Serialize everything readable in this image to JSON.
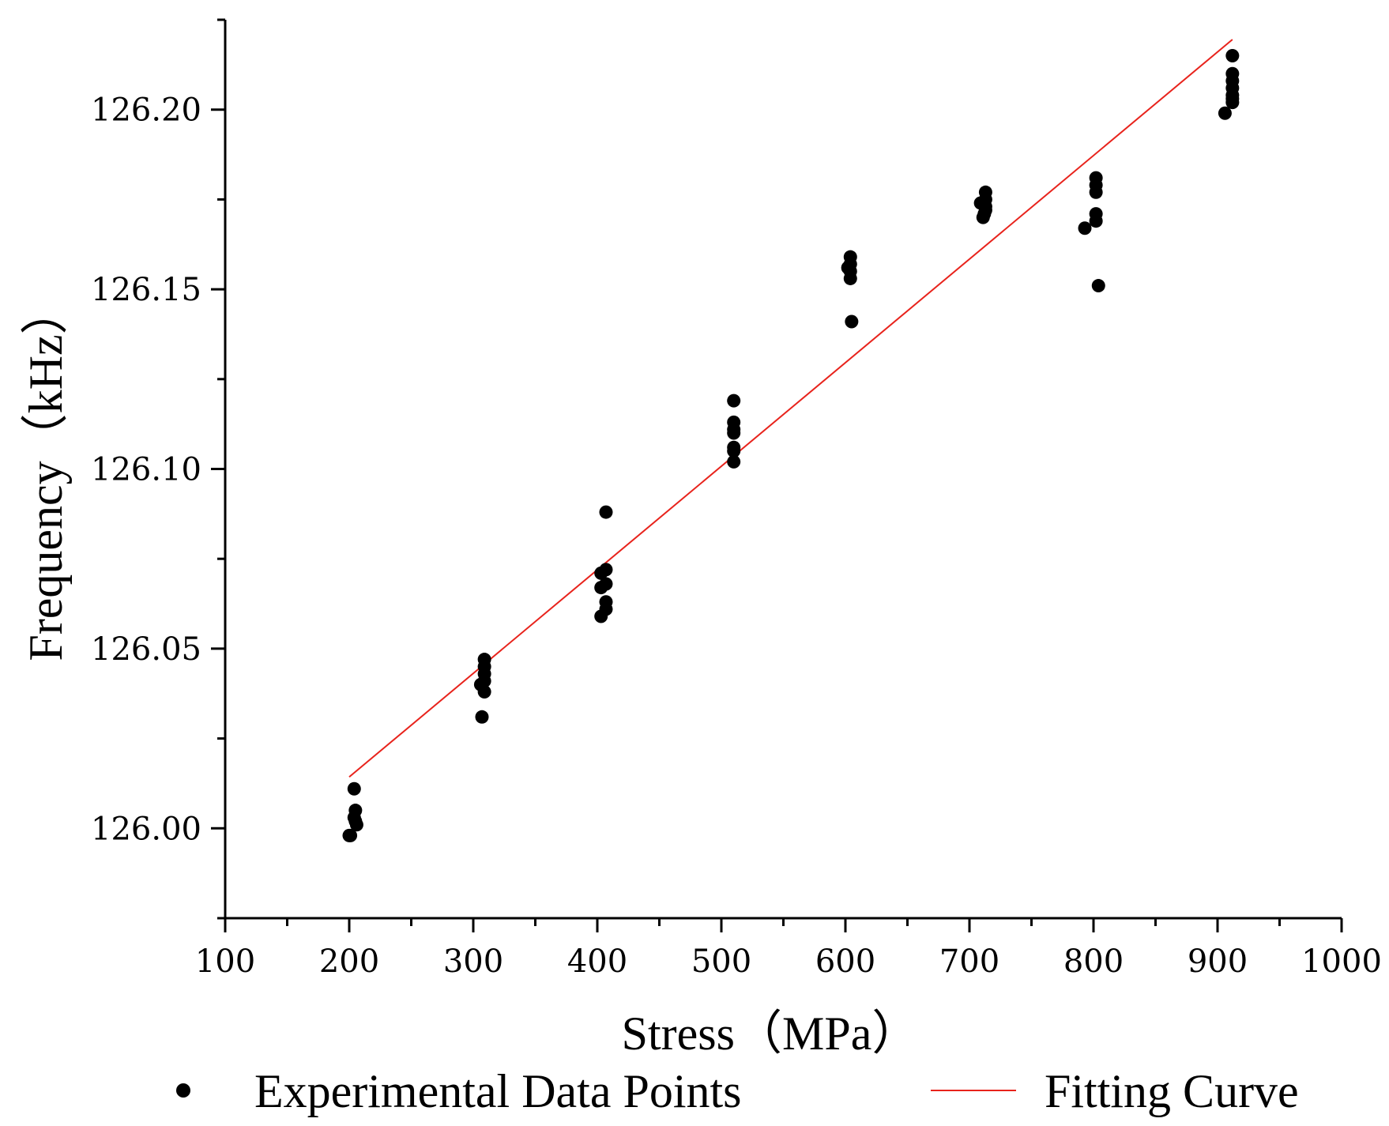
{
  "chart_data": {
    "type": "scatter",
    "xlabel": "Stress（MPa）",
    "ylabel": "Frequency（kHz）",
    "xlim": [
      100,
      1000
    ],
    "ylim": [
      125.975,
      126.225
    ],
    "x_ticks": [
      "100",
      "200",
      "300",
      "400",
      "500",
      "600",
      "700",
      "800",
      "900",
      "1000"
    ],
    "y_ticks": [
      "126.00",
      "126.05",
      "126.10",
      "126.15",
      "126.20"
    ],
    "grid": false,
    "legend_position": "bottom",
    "series": [
      {
        "name": "Experimental Data Points",
        "color": "#000000",
        "points": [
          [
            200,
            125.998
          ],
          [
            201,
            125.998
          ],
          [
            204,
            126.011
          ],
          [
            205,
            126.005
          ],
          [
            205,
            126.002
          ],
          [
            206,
            126.001
          ],
          [
            204,
            126.003
          ],
          [
            306,
            126.04
          ],
          [
            309,
            126.047
          ],
          [
            309,
            126.045
          ],
          [
            309,
            126.043
          ],
          [
            309,
            126.041
          ],
          [
            309,
            126.038
          ],
          [
            307,
            126.031
          ],
          [
            403,
            126.071
          ],
          [
            407,
            126.072
          ],
          [
            407,
            126.068
          ],
          [
            403,
            126.067
          ],
          [
            407,
            126.063
          ],
          [
            407,
            126.061
          ],
          [
            403,
            126.059
          ],
          [
            407,
            126.088
          ],
          [
            510,
            126.119
          ],
          [
            510,
            126.113
          ],
          [
            510,
            126.111
          ],
          [
            510,
            126.11
          ],
          [
            510,
            126.106
          ],
          [
            510,
            126.105
          ],
          [
            510,
            126.102
          ],
          [
            604,
            126.159
          ],
          [
            604,
            126.157
          ],
          [
            602,
            126.156
          ],
          [
            604,
            126.155
          ],
          [
            604,
            126.153
          ],
          [
            605,
            126.141
          ],
          [
            709,
            126.174
          ],
          [
            713,
            126.177
          ],
          [
            713,
            126.175
          ],
          [
            713,
            126.173
          ],
          [
            713,
            126.172
          ],
          [
            711,
            126.17
          ],
          [
            712,
            126.171
          ],
          [
            793,
            126.167
          ],
          [
            802,
            126.181
          ],
          [
            802,
            126.179
          ],
          [
            802,
            126.177
          ],
          [
            802,
            126.171
          ],
          [
            802,
            126.169
          ],
          [
            804,
            126.151
          ],
          [
            906,
            126.199
          ],
          [
            912,
            126.215
          ],
          [
            912,
            126.21
          ],
          [
            912,
            126.208
          ],
          [
            912,
            126.206
          ],
          [
            912,
            126.204
          ],
          [
            912,
            126.203
          ],
          [
            912,
            126.202
          ]
        ]
      },
      {
        "name": "Fitting Curve",
        "color": "#e8231c",
        "line": [
          [
            200,
            126.0143
          ],
          [
            912,
            126.2195
          ]
        ]
      }
    ]
  }
}
